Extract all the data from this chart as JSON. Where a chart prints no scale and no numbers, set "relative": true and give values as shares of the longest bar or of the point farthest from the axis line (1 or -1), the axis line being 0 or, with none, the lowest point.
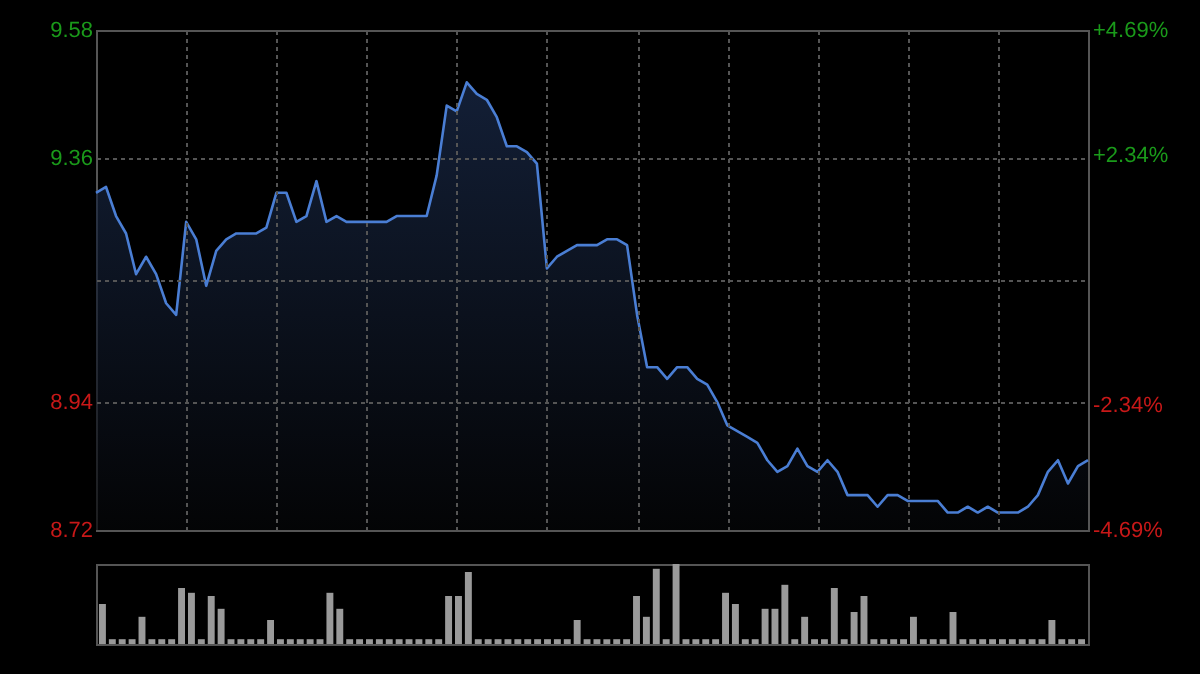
{
  "chart_data": [
    {
      "type": "area",
      "categories": [
        null,
        null,
        null,
        null,
        null,
        null,
        null,
        null,
        null,
        null,
        null,
        null,
        null,
        null,
        null,
        null,
        null,
        null,
        null,
        null,
        null,
        null,
        null,
        null,
        null,
        null,
        null,
        null,
        null,
        null,
        null,
        null,
        null,
        null,
        null,
        null,
        null,
        null,
        null,
        null,
        null,
        null,
        null,
        null,
        null,
        null,
        null,
        null,
        null,
        null,
        null,
        null,
        null,
        null,
        null,
        null,
        null,
        null,
        null,
        null,
        null,
        null,
        null,
        null,
        null,
        null,
        null,
        null,
        null,
        null,
        null,
        null,
        null,
        null,
        null,
        null,
        null,
        null,
        null,
        null,
        null,
        null,
        null,
        null,
        null,
        null,
        null,
        null,
        null,
        null,
        null,
        null,
        null,
        null,
        null,
        null,
        null,
        null,
        null,
        null
      ],
      "series": [
        {
          "color": "#4a7ed4",
          "values": [
            9.3,
            9.31,
            9.26,
            9.23,
            9.16,
            9.19,
            9.16,
            9.11,
            9.09,
            9.25,
            9.22,
            9.14,
            9.2,
            9.22,
            9.23,
            9.23,
            9.23,
            9.24,
            9.3,
            9.3,
            9.25,
            9.26,
            9.32,
            9.25,
            9.26,
            9.25,
            9.25,
            9.25,
            9.25,
            9.25,
            9.26,
            9.26,
            9.26,
            9.26,
            9.33,
            9.45,
            9.44,
            9.49,
            9.47,
            9.46,
            9.43,
            9.38,
            9.38,
            9.37,
            9.35,
            9.17,
            9.19,
            9.2,
            9.21,
            9.21,
            9.21,
            9.22,
            9.22,
            9.21,
            9.09,
            9.0,
            9.0,
            8.98,
            9.0,
            9.0,
            8.98,
            8.97,
            8.94,
            8.9,
            8.89,
            8.88,
            8.87,
            8.84,
            8.82,
            8.83,
            8.86,
            8.83,
            8.82,
            8.84,
            8.82,
            8.78,
            8.78,
            8.78,
            8.76,
            8.78,
            8.78,
            8.77,
            8.77,
            8.77,
            8.77,
            8.75,
            8.75,
            8.76,
            8.75,
            8.76,
            8.75,
            8.75,
            8.75,
            8.76,
            8.78,
            8.82,
            8.84,
            8.8,
            8.83,
            8.84
          ]
        }
      ],
      "ylim": [
        8.72,
        9.58
      ],
      "yticks": [
        9.58,
        9.36,
        {
          "value": 9.15,
          "label": null
        },
        8.94,
        8.72
      ],
      "y2lim": [
        -4.69,
        4.69
      ],
      "y2ticks": [
        {
          "value": 4.69,
          "label": "+4.69%"
        },
        {
          "value": 2.34,
          "label": "+2.34%"
        },
        {
          "value": -2.34,
          "label": "-2.34%"
        },
        {
          "value": -4.69,
          "label": "-4.69%"
        }
      ],
      "grid": true
    },
    {
      "type": "bar",
      "categories": [
        null,
        null,
        null,
        null,
        null,
        null,
        null,
        null,
        null,
        null,
        null,
        null,
        null,
        null,
        null,
        null,
        null,
        null,
        null,
        null,
        null,
        null,
        null,
        null,
        null,
        null,
        null,
        null,
        null,
        null,
        null,
        null,
        null,
        null,
        null,
        null,
        null,
        null,
        null,
        null,
        null,
        null,
        null,
        null,
        null,
        null,
        null,
        null,
        null,
        null,
        null,
        null,
        null,
        null,
        null,
        null,
        null,
        null,
        null,
        null,
        null,
        null,
        null,
        null,
        null,
        null,
        null,
        null,
        null,
        null,
        null,
        null,
        null,
        null,
        null,
        null,
        null,
        null,
        null,
        null,
        null,
        null,
        null,
        null,
        null,
        null,
        null,
        null,
        null,
        null,
        null,
        null,
        null,
        null,
        null,
        null,
        null,
        null,
        null,
        null
      ],
      "relative": true,
      "series": [
        {
          "color": "#9a9a9a",
          "values": [
            0.5,
            0.06,
            0.06,
            0.06,
            0.34,
            0.06,
            0.06,
            0.06,
            0.7,
            0.64,
            0.06,
            0.6,
            0.44,
            0.06,
            0.06,
            0.06,
            0.06,
            0.3,
            0.06,
            0.06,
            0.06,
            0.06,
            0.06,
            0.64,
            0.44,
            0.06,
            0.06,
            0.06,
            0.06,
            0.06,
            0.06,
            0.06,
            0.06,
            0.06,
            0.06,
            0.6,
            0.6,
            0.9,
            0.06,
            0.06,
            0.06,
            0.06,
            0.06,
            0.06,
            0.06,
            0.06,
            0.06,
            0.06,
            0.3,
            0.06,
            0.06,
            0.06,
            0.06,
            0.06,
            0.6,
            0.34,
            0.94,
            0.06,
            1,
            0.06,
            0.06,
            0.06,
            0.06,
            0.64,
            0.5,
            0.06,
            0.06,
            0.44,
            0.44,
            0.74,
            0.06,
            0.34,
            0.06,
            0.06,
            0.7,
            0.06,
            0.4,
            0.6,
            0.06,
            0.06,
            0.06,
            0.06,
            0.34,
            0.06,
            0.06,
            0.06,
            0.4,
            0.06,
            0.06,
            0.06,
            0.06,
            0.06,
            0.06,
            0.06,
            0.06,
            0.06,
            0.3,
            0.06,
            0.06,
            0.06
          ]
        }
      ]
    }
  ]
}
